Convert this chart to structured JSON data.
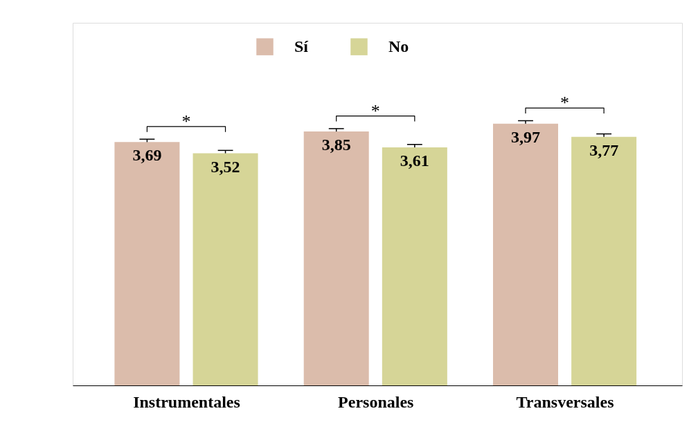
{
  "chart_data": {
    "type": "bar",
    "categories": [
      "Instrumentales",
      "Personales",
      "Transversales"
    ],
    "series": [
      {
        "name": "Sí",
        "color": "#dbbcab",
        "values": [
          3.69,
          3.85,
          3.97
        ],
        "value_labels": [
          "3,69",
          "3,85",
          "3,97"
        ]
      },
      {
        "name": "No",
        "color": "#d6d597",
        "values": [
          3.52,
          3.61,
          3.77
        ],
        "value_labels": [
          "3,52",
          "3,61",
          "3,77"
        ]
      }
    ],
    "tick_labels": "x",
    "legend": "top",
    "grid": false,
    "annotations": [
      "*",
      "*",
      "*"
    ]
  }
}
